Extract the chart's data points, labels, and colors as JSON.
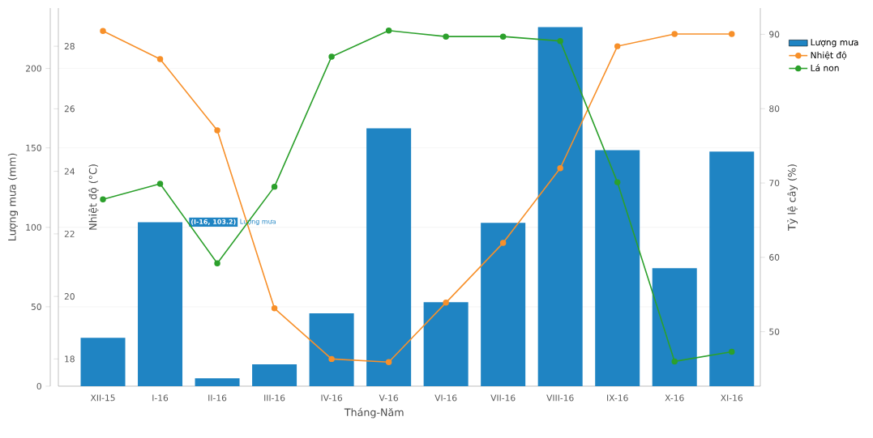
{
  "chart_data": {
    "type": "bar",
    "xlabel": "Tháng-Năm",
    "ylabel": "Lượng mưa (mm)",
    "y2label": "Nhiệt độ (°C)",
    "y3label": "Tỷ lệ cây (%)",
    "categories": [
      "XII-15",
      "I-16",
      "II-16",
      "III-16",
      "IV-16",
      "V-16",
      "VI-16",
      "VII-16",
      "VIII-16",
      "IX-16",
      "X-16",
      "XI-16"
    ],
    "series": [
      {
        "name": "Lượng mưa",
        "axis": "y",
        "color": "#1f84c3",
        "values": [
          30.5,
          103.2,
          5,
          13.7,
          45.8,
          162.3,
          52.9,
          102.8,
          226,
          148.6,
          74.3,
          147.6
        ]
      },
      {
        "name": "Nhiệt độ",
        "type": "line",
        "axis": "y2",
        "color": "#f7902a",
        "values": [
          28.49,
          27.59,
          25.31,
          19.62,
          18.0,
          17.9,
          19.8,
          21.71,
          24.1,
          28.0,
          28.39,
          28.39
        ]
      },
      {
        "name": "Lá non",
        "type": "line",
        "axis": "y3",
        "color": "#2ca02c",
        "values": [
          67.8,
          69.9,
          59.2,
          69.5,
          87.0,
          90.5,
          89.7,
          89.7,
          89.1,
          70.1,
          46.0,
          47.3
        ]
      }
    ],
    "ylim": [
      0,
      238
    ],
    "yticks": [
      0,
      50,
      100,
      150,
      200
    ],
    "y2lim": [
      17.13,
      29.22
    ],
    "y2ticks": [
      18,
      20,
      22,
      24,
      26,
      28
    ],
    "y3lim": [
      42.67,
      93.53
    ],
    "y3ticks": [
      50,
      60,
      70,
      80,
      90
    ],
    "annotations": [
      "(I-16, 103.2)"
    ],
    "grid": "y",
    "legend": "top right",
    "marker": "circle",
    "line_style": "solid"
  }
}
